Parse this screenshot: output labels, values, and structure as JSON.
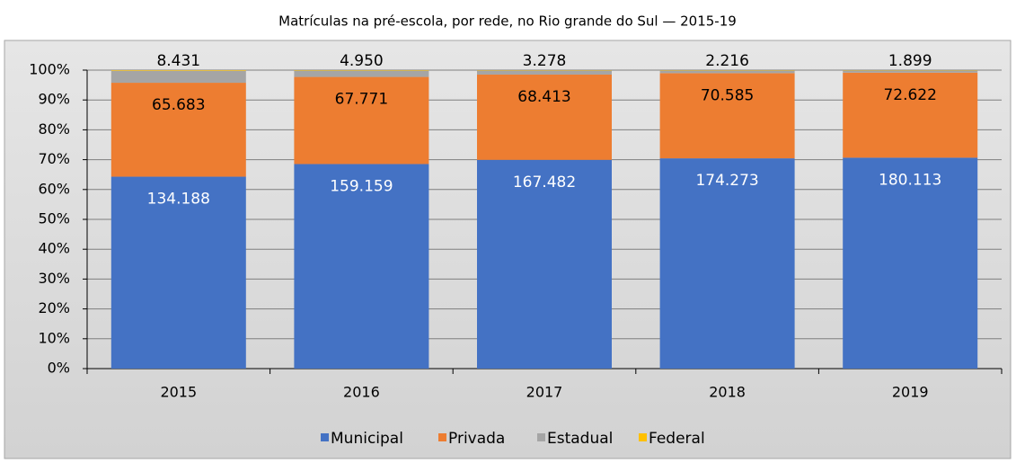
{
  "chart_data": {
    "type": "bar",
    "stacked": "percent",
    "title": "Matrículas na pré-escola, por rede, no Rio grande do Sul — 2015-19",
    "categories": [
      "2015",
      "2016",
      "2017",
      "2018",
      "2019"
    ],
    "series": [
      {
        "name": "Municipal",
        "color": "#4472c4",
        "values": [
          134188,
          159159,
          167482,
          174273,
          180113
        ],
        "value_labels": [
          "134.188",
          "159.159",
          "167.482",
          "174.273",
          "180.113"
        ]
      },
      {
        "name": "Privada",
        "color": "#ed7d31",
        "values": [
          65683,
          67771,
          68413,
          70585,
          72622
        ],
        "value_labels": [
          "65.683",
          "67.771",
          "68.413",
          "70.585",
          "72.622"
        ]
      },
      {
        "name": "Estadual",
        "color": "#a5a5a5",
        "values": [
          8431,
          4950,
          3278,
          2216,
          1899
        ],
        "value_labels": [
          "8.431",
          "4.950",
          "3.278",
          "2.216",
          "1.899"
        ]
      },
      {
        "name": "Federal",
        "color": "#ffc000",
        "values": [
          400,
          350,
          300,
          300,
          250
        ]
      }
    ],
    "ylim": [
      0,
      100
    ],
    "yticks": [
      {
        "value": 0,
        "label": "0%"
      },
      {
        "value": 10,
        "label": "10%"
      },
      {
        "value": 20,
        "label": "20%"
      },
      {
        "value": 30,
        "label": "30%"
      },
      {
        "value": 40,
        "label": "40%"
      },
      {
        "value": 50,
        "label": "50%"
      },
      {
        "value": 60,
        "label": "60%"
      },
      {
        "value": 70,
        "label": "70%"
      },
      {
        "value": 80,
        "label": "80%"
      },
      {
        "value": 90,
        "label": "90%"
      },
      {
        "value": 100,
        "label": "100%"
      }
    ],
    "grid": true,
    "legend": "bottom"
  }
}
